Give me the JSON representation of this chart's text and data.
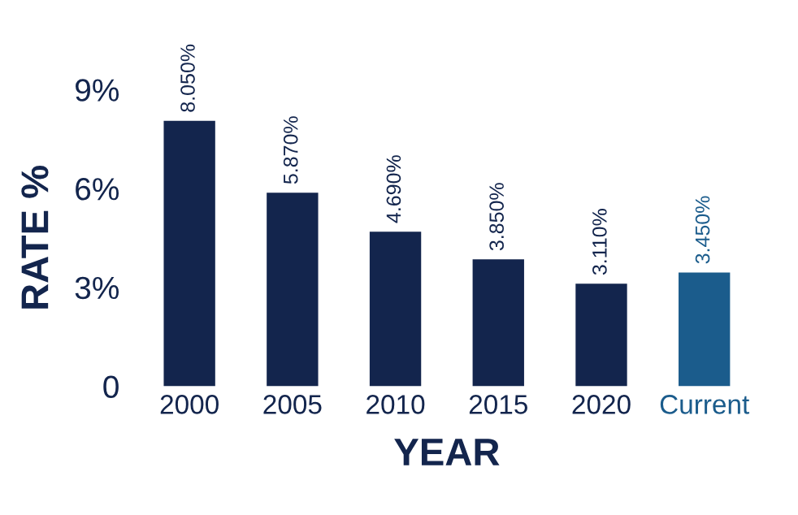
{
  "chart_data": {
    "type": "bar",
    "xlabel": "YEAR",
    "ylabel": "RATE %",
    "categories": [
      "2000",
      "2005",
      "2010",
      "2015",
      "2020",
      "Current"
    ],
    "values": [
      8.05,
      5.87,
      4.69,
      3.85,
      3.11,
      3.45
    ],
    "value_labels": [
      "8.050%",
      "5.870%",
      "4.690%",
      "3.850%",
      "3.110%",
      "3.450%"
    ],
    "colors": [
      "#13254d",
      "#13254d",
      "#13254d",
      "#13254d",
      "#13254d",
      "#1b5c8c"
    ],
    "ylim": [
      0,
      9
    ],
    "yticks": [
      0,
      {
        "value": 3,
        "label": "3%"
      },
      {
        "value": 6,
        "label": "6%"
      },
      {
        "value": 9,
        "label": "9%"
      }
    ],
    "grid": false,
    "legend": false
  }
}
